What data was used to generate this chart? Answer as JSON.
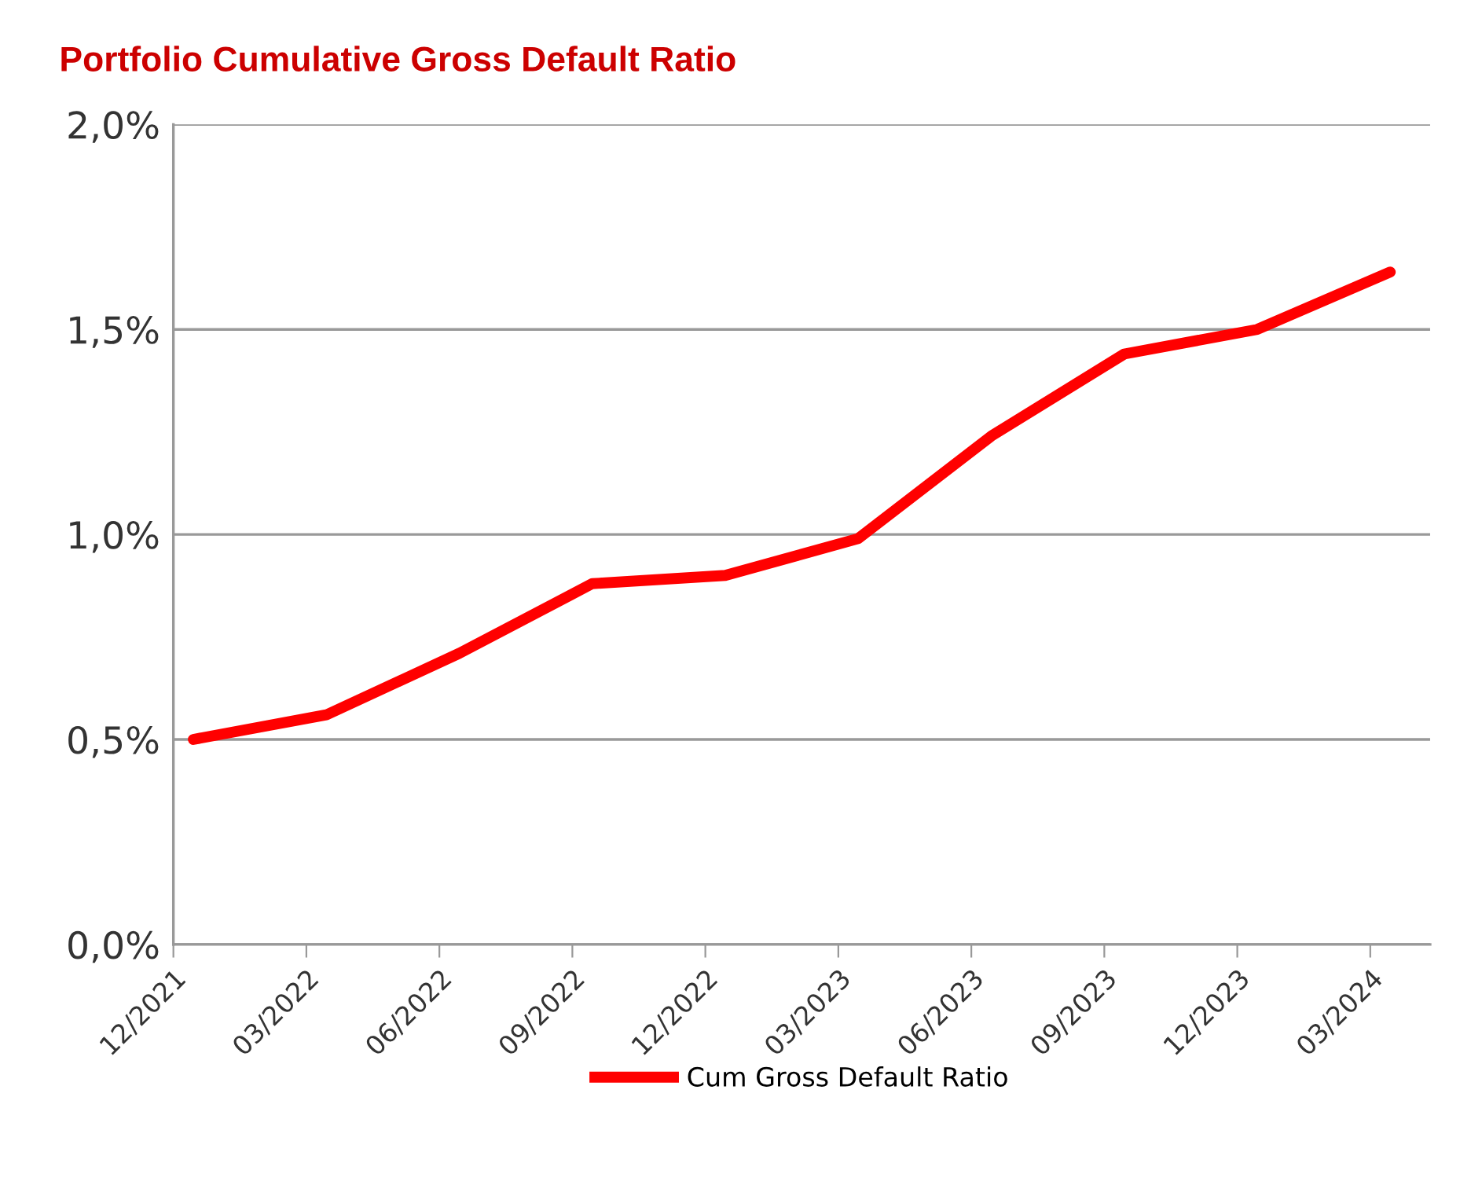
{
  "chart_data": {
    "type": "line",
    "title": "Portfolio Cumulative Gross Default Ratio",
    "categories": [
      "12/2021",
      "03/2022",
      "06/2022",
      "09/2022",
      "12/2022",
      "03/2023",
      "06/2023",
      "09/2023",
      "12/2023",
      "03/2024"
    ],
    "series": [
      {
        "name": "Cum Gross Default Ratio",
        "color": "#ff0000",
        "values": [
          0.5,
          0.56,
          0.71,
          0.88,
          0.9,
          0.99,
          1.24,
          1.44,
          1.5,
          1.64
        ]
      }
    ],
    "ylim": [
      0,
      2
    ],
    "yticks": [
      {
        "value": 0,
        "label": "0,0%"
      },
      {
        "value": 0.5,
        "label": "0,5%"
      },
      {
        "value": 1,
        "label": "1,0%"
      },
      {
        "value": 1.5,
        "label": "1,5%"
      },
      {
        "value": 2,
        "label": "2,0%"
      }
    ],
    "grid": "y",
    "legend": "bottom",
    "marker": "none",
    "line_style": "solid"
  }
}
